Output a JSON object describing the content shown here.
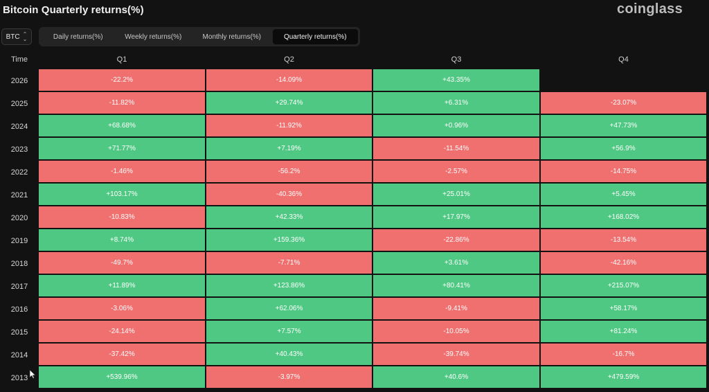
{
  "header": {
    "title": "Bitcoin Quarterly returns(%)",
    "brand": "coinglass"
  },
  "asset_select": {
    "value": "BTC"
  },
  "tabs": [
    {
      "label": "Daily returns(%)",
      "active": false
    },
    {
      "label": "Weekly returns(%)",
      "active": false
    },
    {
      "label": "Monthly returns(%)",
      "active": false
    },
    {
      "label": "Quarterly returns(%)",
      "active": true
    }
  ],
  "colors": {
    "positive": "#4fc883",
    "negative": "#f07070",
    "background": "#121212"
  },
  "table": {
    "columns": [
      "Time",
      "Q1",
      "Q2",
      "Q3",
      "Q4"
    ],
    "rows": [
      {
        "year": "2026",
        "q": [
          "-22.2%",
          "-14.09%",
          "+43.35%",
          ""
        ]
      },
      {
        "year": "2025",
        "q": [
          "-11.82%",
          "+29.74%",
          "+6.31%",
          "-23.07%"
        ]
      },
      {
        "year": "2024",
        "q": [
          "+68.68%",
          "-11.92%",
          "+0.96%",
          "+47.73%"
        ]
      },
      {
        "year": "2023",
        "q": [
          "+71.77%",
          "+7.19%",
          "-11.54%",
          "+56.9%"
        ]
      },
      {
        "year": "2022",
        "q": [
          "-1.46%",
          "-56.2%",
          "-2.57%",
          "-14.75%"
        ]
      },
      {
        "year": "2021",
        "q": [
          "+103.17%",
          "-40.36%",
          "+25.01%",
          "+5.45%"
        ]
      },
      {
        "year": "2020",
        "q": [
          "-10.83%",
          "+42.33%",
          "+17.97%",
          "+168.02%"
        ]
      },
      {
        "year": "2019",
        "q": [
          "+8.74%",
          "+159.36%",
          "-22.86%",
          "-13.54%"
        ]
      },
      {
        "year": "2018",
        "q": [
          "-49.7%",
          "-7.71%",
          "+3.61%",
          "-42.16%"
        ]
      },
      {
        "year": "2017",
        "q": [
          "+11.89%",
          "+123.86%",
          "+80.41%",
          "+215.07%"
        ]
      },
      {
        "year": "2016",
        "q": [
          "-3.06%",
          "+62.06%",
          "-9.41%",
          "+58.17%"
        ]
      },
      {
        "year": "2015",
        "q": [
          "-24.14%",
          "+7.57%",
          "-10.05%",
          "+81.24%"
        ]
      },
      {
        "year": "2014",
        "q": [
          "-37.42%",
          "+40.43%",
          "-39.74%",
          "-16.7%"
        ]
      },
      {
        "year": "2013",
        "q": [
          "+539.96%",
          "-3.97%",
          "+40.6%",
          "+479.59%"
        ]
      }
    ]
  }
}
